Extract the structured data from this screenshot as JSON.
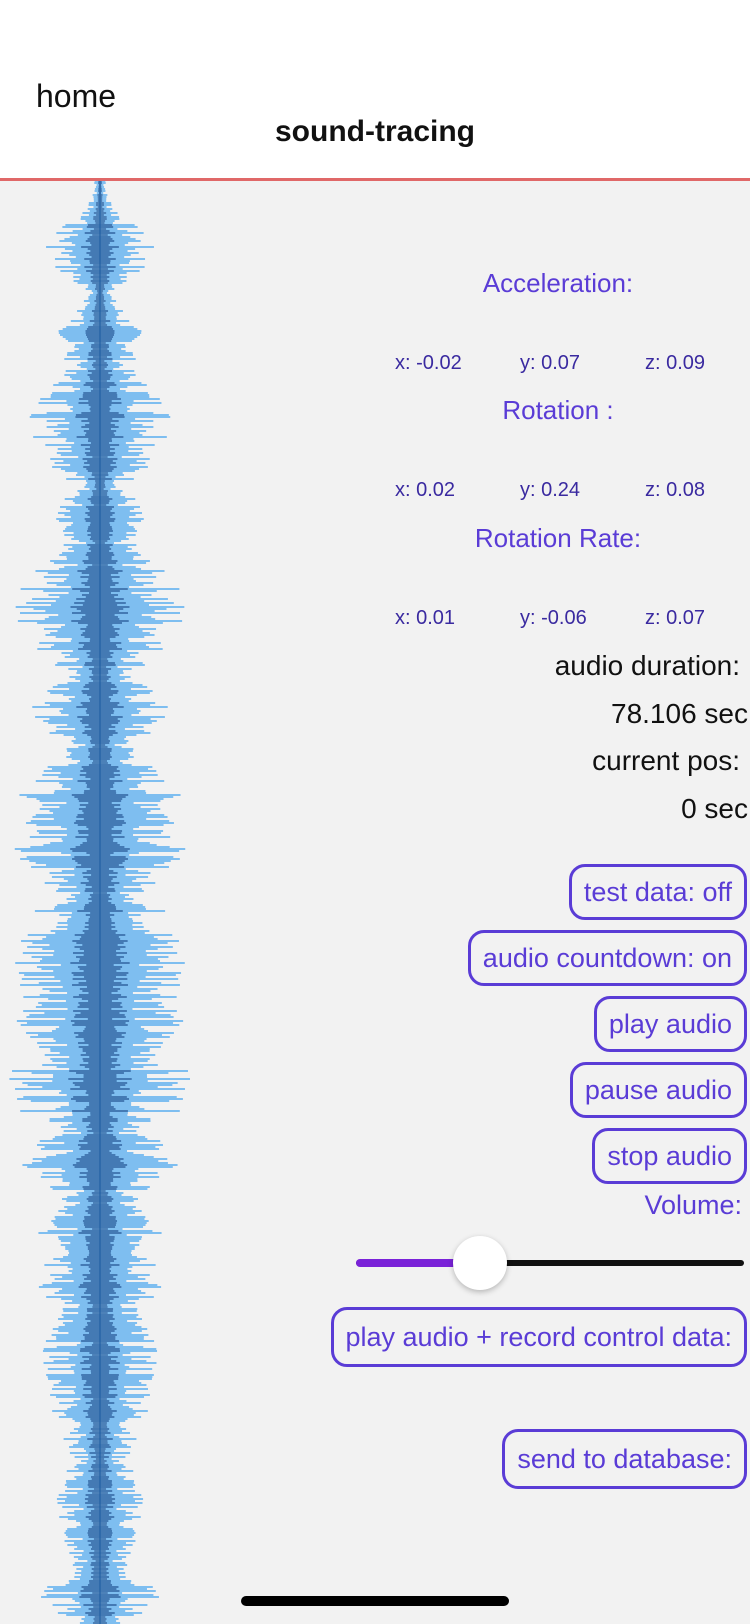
{
  "header": {
    "home_label": "home",
    "title": "sound-tracing",
    "separator_color": "#e06868"
  },
  "sensors": {
    "acceleration": {
      "title": "Acceleration:",
      "x": "x: -0.02",
      "y": "y: 0.07",
      "z": "z: 0.09"
    },
    "rotation": {
      "title": "Rotation :",
      "x": "x: 0.02",
      "y": "y: 0.24",
      "z": "z: 0.08"
    },
    "rotation_rate": {
      "title": "Rotation Rate:",
      "x": "x: 0.01",
      "y": "y: -0.06",
      "z": "z: 0.07"
    }
  },
  "audio": {
    "duration_label": "audio duration:",
    "duration_value": "78.106 sec",
    "position_label": "current pos:",
    "position_value": "0 sec"
  },
  "buttons": {
    "test_data": "test data: off",
    "countdown": "audio countdown: on",
    "play": "play audio",
    "pause": "pause audio",
    "stop": "stop audio",
    "record": "play audio + record control data:",
    "send": "send to database:"
  },
  "volume": {
    "label": "Volume:",
    "level": 0.32,
    "fill_color": "#7a22d8"
  },
  "waveform": {
    "icon": "audio-waveform",
    "light_color": "#3a9ef0",
    "dark_color": "#1a5aa0"
  },
  "accent_color": "#5a3cd6"
}
